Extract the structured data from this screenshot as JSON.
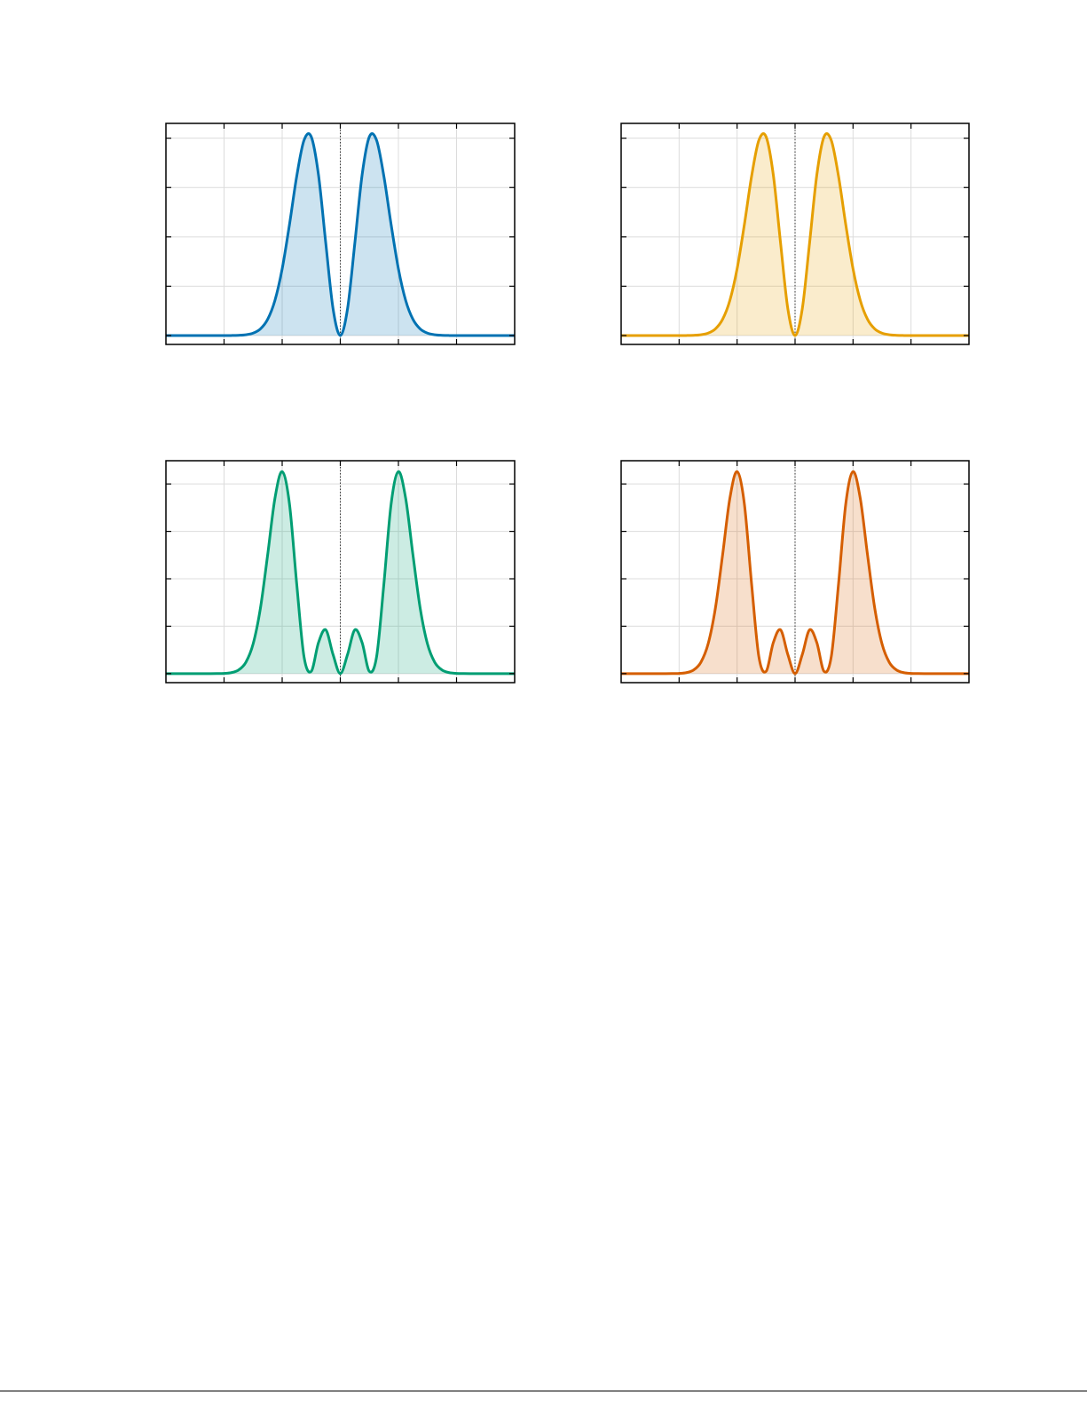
{
  "chart_data": [
    {
      "type": "line",
      "color": "#0072b2",
      "grid": true,
      "vline": 0,
      "xlim": [
        -6,
        6
      ],
      "xticks": [
        -4,
        -2,
        0,
        2,
        4
      ],
      "ylim": [
        -0.018,
        0.43
      ],
      "yticks": [
        0,
        0.1,
        0.2,
        0.3,
        0.4
      ],
      "x": [
        -6,
        -5.75,
        -5.5,
        -5.25,
        -5,
        -4.75,
        -4.5,
        -4.25,
        -4,
        -3.75,
        -3.5,
        -3.25,
        -3,
        -2.75,
        -2.5,
        -2.25,
        -2,
        -1.75,
        -1.5,
        -1.25,
        -1,
        -0.75,
        -0.5,
        -0.25,
        0,
        0.25,
        0.5,
        0.75,
        1,
        1.25,
        1.5,
        1.75,
        2,
        2.25,
        2.5,
        2.75,
        3,
        3.25,
        3.5,
        3.75,
        4,
        4.25,
        4.5,
        4.75,
        5,
        5.25,
        5.5,
        5.75,
        6
      ],
      "values": [
        0,
        0,
        0,
        0,
        0,
        0,
        0,
        0,
        0,
        0.0001,
        0.0005,
        0.0016,
        0.0049,
        0.0134,
        0.0329,
        0.0711,
        0.1352,
        0.2245,
        0.3227,
        0.3956,
        0.403,
        0.3254,
        0.1873,
        0.0547,
        0,
        0.0547,
        0.1873,
        0.3254,
        0.403,
        0.3956,
        0.3227,
        0.2245,
        0.1352,
        0.0711,
        0.0329,
        0.0134,
        0.0049,
        0.0016,
        0.0005,
        0.0001,
        0,
        0,
        0,
        0,
        0,
        0,
        0,
        0,
        0
      ]
    },
    {
      "type": "line",
      "color": "#e69f00",
      "grid": true,
      "vline": 0,
      "xlim": [
        -6,
        6
      ],
      "xticks": [
        -4,
        -2,
        0,
        2,
        4
      ],
      "ylim": [
        -0.018,
        0.43
      ],
      "yticks": [
        0,
        0.1,
        0.2,
        0.3,
        0.4
      ],
      "x": [
        -6,
        -5.75,
        -5.5,
        -5.25,
        -5,
        -4.75,
        -4.5,
        -4.25,
        -4,
        -3.75,
        -3.5,
        -3.25,
        -3,
        -2.75,
        -2.5,
        -2.25,
        -2,
        -1.75,
        -1.5,
        -1.25,
        -1,
        -0.75,
        -0.5,
        -0.25,
        0,
        0.25,
        0.5,
        0.75,
        1,
        1.25,
        1.5,
        1.75,
        2,
        2.25,
        2.5,
        2.75,
        3,
        3.25,
        3.5,
        3.75,
        4,
        4.25,
        4.5,
        4.75,
        5,
        5.25,
        5.5,
        5.75,
        6
      ],
      "values": [
        0,
        0,
        0,
        0,
        0,
        0,
        0,
        0,
        0,
        0.0001,
        0.0005,
        0.0016,
        0.0049,
        0.0134,
        0.0329,
        0.0711,
        0.1352,
        0.2245,
        0.3227,
        0.3956,
        0.403,
        0.3254,
        0.1873,
        0.0547,
        0,
        0.0547,
        0.1873,
        0.3254,
        0.403,
        0.3956,
        0.3227,
        0.2245,
        0.1352,
        0.0711,
        0.0329,
        0.0134,
        0.0049,
        0.0016,
        0.0005,
        0.0001,
        0,
        0,
        0,
        0,
        0,
        0,
        0,
        0,
        0
      ]
    },
    {
      "type": "line",
      "color": "#009e73",
      "grid": true,
      "vline": 0,
      "xlim": [
        -6,
        6
      ],
      "xticks": [
        -4,
        -2,
        0,
        2,
        4
      ],
      "ylim": [
        -0.019,
        0.449
      ],
      "yticks": [
        0,
        0.1,
        0.2,
        0.3,
        0.4
      ],
      "x": [
        -6,
        -5.75,
        -5.5,
        -5.25,
        -5,
        -4.75,
        -4.5,
        -4.25,
        -4,
        -3.75,
        -3.5,
        -3.25,
        -3,
        -2.75,
        -2.5,
        -2.25,
        -2,
        -1.75,
        -1.5,
        -1.25,
        -1,
        -0.75,
        -0.5,
        -0.25,
        0,
        0.25,
        0.5,
        0.75,
        1,
        1.25,
        1.5,
        1.75,
        2,
        2.25,
        2.5,
        2.75,
        3,
        3.25,
        3.5,
        3.75,
        4,
        4.25,
        4.5,
        4.75,
        5,
        5.25,
        5.5,
        5.75,
        6
      ],
      "values": [
        0,
        0,
        0,
        0,
        0,
        0,
        0,
        0.0001,
        0.0005,
        0.0021,
        0.0077,
        0.0239,
        0.0626,
        0.1376,
        0.2504,
        0.3695,
        0.4259,
        0.3584,
        0.1893,
        0.0361,
        0.0047,
        0.0654,
        0.0924,
        0.0404,
        0,
        0.0404,
        0.0924,
        0.0654,
        0.0047,
        0.0361,
        0.1893,
        0.3584,
        0.4259,
        0.3695,
        0.2504,
        0.1376,
        0.0626,
        0.0239,
        0.0077,
        0.0021,
        0.0005,
        0.0001,
        0,
        0,
        0,
        0,
        0,
        0,
        0
      ]
    },
    {
      "type": "line",
      "color": "#d55e00",
      "grid": true,
      "vline": 0,
      "xlim": [
        -6,
        6
      ],
      "xticks": [
        -4,
        -2,
        0,
        2,
        4
      ],
      "ylim": [
        -0.019,
        0.449
      ],
      "yticks": [
        0,
        0.1,
        0.2,
        0.3,
        0.4
      ],
      "x": [
        -6,
        -5.75,
        -5.5,
        -5.25,
        -5,
        -4.75,
        -4.5,
        -4.25,
        -4,
        -3.75,
        -3.5,
        -3.25,
        -3,
        -2.75,
        -2.5,
        -2.25,
        -2,
        -1.75,
        -1.5,
        -1.25,
        -1,
        -0.75,
        -0.5,
        -0.25,
        0,
        0.25,
        0.5,
        0.75,
        1,
        1.25,
        1.5,
        1.75,
        2,
        2.25,
        2.5,
        2.75,
        3,
        3.25,
        3.5,
        3.75,
        4,
        4.25,
        4.5,
        4.75,
        5,
        5.25,
        5.5,
        5.75,
        6
      ],
      "values": [
        0,
        0,
        0,
        0,
        0,
        0,
        0,
        0.0001,
        0.0005,
        0.0021,
        0.0077,
        0.0239,
        0.0626,
        0.1376,
        0.2504,
        0.3695,
        0.4259,
        0.3584,
        0.1893,
        0.0361,
        0.0047,
        0.0654,
        0.0924,
        0.0404,
        0,
        0.0404,
        0.0924,
        0.0654,
        0.0047,
        0.0361,
        0.1893,
        0.3584,
        0.4259,
        0.3695,
        0.2504,
        0.1376,
        0.0626,
        0.0239,
        0.0077,
        0.0021,
        0.0005,
        0.0001,
        0,
        0,
        0,
        0,
        0,
        0,
        0
      ]
    }
  ]
}
